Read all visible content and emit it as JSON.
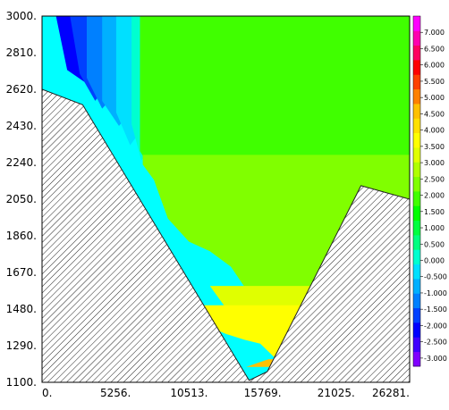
{
  "chart_data": {
    "type": "heatmap",
    "title": "",
    "xlabel": "",
    "ylabel": "",
    "xlim": [
      0,
      26281
    ],
    "ylim": [
      1100,
      3000
    ],
    "x_ticks": [
      "0.",
      "5256.",
      "10513.",
      "15769.",
      "21025.",
      "26281."
    ],
    "y_ticks": [
      "3000.",
      "2810.",
      "2620.",
      "2430.",
      "2240.",
      "2050.",
      "1860.",
      "1670.",
      "1480.",
      "1290.",
      "1100."
    ],
    "colorbar": {
      "range": [
        -3.25,
        7.5
      ],
      "labels": [
        "7.000",
        "6.500",
        "6.000",
        "5.500",
        "5.000",
        "4.500",
        "4.000",
        "3.500",
        "3.000",
        "2.500",
        "2.000",
        "1.500",
        "1.000",
        "0.500",
        "0.000",
        "-0.500",
        "-1.000",
        "-1.500",
        "-2.000",
        "-2.500",
        "-3.000"
      ],
      "label_values": [
        7.0,
        6.5,
        6.0,
        5.5,
        5.0,
        4.5,
        4.0,
        3.5,
        3.0,
        2.5,
        2.0,
        1.5,
        1.0,
        0.5,
        0.0,
        -0.5,
        -1.0,
        -1.5,
        -2.0,
        -2.5,
        -3.0
      ],
      "colors": [
        "#8000ff",
        "#4000ff",
        "#0000ff",
        "#0040ff",
        "#0080ff",
        "#00b0ff",
        "#00e0ff",
        "#00ffd0",
        "#00ff80",
        "#00ff40",
        "#00ff00",
        "#40ff00",
        "#80ff00",
        "#b0ff00",
        "#e0ff00",
        "#ffff00",
        "#ffe000",
        "#ffc000",
        "#ff8000",
        "#ff4000",
        "#ff0000",
        "#ff0060",
        "#ff00b0",
        "#ff00ff"
      ]
    },
    "terrain_boundary": [
      [
        0,
        2620
      ],
      [
        2900,
        2540
      ],
      [
        14800,
        1110
      ],
      [
        16100,
        1155
      ],
      [
        22800,
        2120
      ],
      [
        26281,
        2050
      ]
    ],
    "contour_levels": [
      {
        "value": -2.5,
        "color": "#0000ff",
        "points": [
          [
            1000,
            3000
          ],
          [
            1800,
            2720
          ],
          [
            3800,
            2620
          ],
          [
            6500,
            2790
          ],
          [
            9500,
            2870
          ],
          [
            12500,
            2900
          ],
          [
            16000,
            2940
          ],
          [
            19000,
            2910
          ],
          [
            21500,
            2850
          ],
          [
            23500,
            2750
          ],
          [
            25800,
            2640
          ],
          [
            26281,
            2600
          ],
          [
            26281,
            3000
          ]
        ]
      },
      {
        "value": -2.0,
        "color": "#0040ff",
        "points": [
          [
            2000,
            3000
          ],
          [
            2700,
            2700
          ],
          [
            3800,
            2560
          ],
          [
            6000,
            2760
          ],
          [
            9500,
            2820
          ],
          [
            13000,
            2830
          ],
          [
            16000,
            2880
          ],
          [
            19000,
            2860
          ],
          [
            22000,
            2780
          ],
          [
            24500,
            2640
          ],
          [
            25700,
            2440
          ],
          [
            26281,
            2300
          ],
          [
            26281,
            3000
          ]
        ]
      },
      {
        "value": -1.0,
        "color": "#0080ff",
        "points": [
          [
            3200,
            3000
          ],
          [
            3200,
            2680
          ],
          [
            4300,
            2520
          ],
          [
            6500,
            2690
          ],
          [
            9500,
            2740
          ],
          [
            12500,
            2760
          ],
          [
            15500,
            2810
          ],
          [
            18800,
            2780
          ],
          [
            21500,
            2700
          ],
          [
            24000,
            2560
          ],
          [
            25500,
            2300
          ],
          [
            25900,
            2150
          ],
          [
            26281,
            2100
          ],
          [
            26281,
            3000
          ]
        ]
      },
      {
        "value": -0.5,
        "color": "#00b0ff",
        "points": [
          [
            4300,
            3000
          ],
          [
            4300,
            2560
          ],
          [
            5500,
            2430
          ],
          [
            7500,
            2600
          ],
          [
            10000,
            2660
          ],
          [
            12500,
            2680
          ],
          [
            15500,
            2730
          ],
          [
            18500,
            2700
          ],
          [
            21000,
            2600
          ],
          [
            23300,
            2380
          ],
          [
            24200,
            2120
          ],
          [
            25000,
            2080
          ],
          [
            26281,
            2050
          ],
          [
            26281,
            3000
          ]
        ]
      },
      {
        "value": 0.0,
        "color": "#00e0ff",
        "points": [
          [
            5300,
            3000
          ],
          [
            5300,
            2500
          ],
          [
            6300,
            2330
          ],
          [
            7800,
            2480
          ],
          [
            10000,
            2560
          ],
          [
            12500,
            2600
          ],
          [
            15000,
            2640
          ],
          [
            18000,
            2600
          ],
          [
            20500,
            2480
          ],
          [
            22300,
            2200
          ],
          [
            22800,
            2050
          ],
          [
            22000,
            1900
          ],
          [
            26281,
            1900
          ],
          [
            26281,
            3000
          ]
        ]
      },
      {
        "value": 0.5,
        "color": "#00ffd0",
        "points": [
          [
            6400,
            3000
          ],
          [
            6400,
            2440
          ],
          [
            7100,
            2250
          ],
          [
            8200,
            2350
          ],
          [
            10200,
            2440
          ],
          [
            12300,
            2500
          ],
          [
            14500,
            2520
          ],
          [
            17500,
            2490
          ],
          [
            19500,
            2350
          ],
          [
            21000,
            2150
          ],
          [
            21800,
            1950
          ],
          [
            21000,
            1800
          ],
          [
            26281,
            1800
          ],
          [
            26281,
            3000
          ]
        ]
      },
      {
        "value": 1.0,
        "color": "#00ff80",
        "points": [
          [
            7400,
            3000
          ],
          [
            7400,
            2370
          ],
          [
            8200,
            2200
          ],
          [
            9500,
            2290
          ],
          [
            11500,
            2380
          ],
          [
            13500,
            2430
          ],
          [
            15500,
            2400
          ],
          [
            17500,
            2360
          ],
          [
            19200,
            2200
          ],
          [
            20200,
            2000
          ],
          [
            20300,
            1800
          ],
          [
            19400,
            1700
          ],
          [
            26281,
            1700
          ],
          [
            26281,
            3000
          ]
        ]
      },
      {
        "value": 1.5,
        "color": "#00ff40",
        "points": [
          [
            8500,
            3000
          ],
          [
            8500,
            2320
          ],
          [
            9300,
            2170
          ],
          [
            10500,
            2240
          ],
          [
            12300,
            2320
          ],
          [
            14000,
            2330
          ],
          [
            16000,
            2260
          ],
          [
            17600,
            2150
          ],
          [
            18600,
            1980
          ],
          [
            18900,
            1820
          ],
          [
            18600,
            1650
          ],
          [
            26281,
            1650
          ],
          [
            26281,
            3000
          ]
        ]
      },
      {
        "value": 2.0,
        "color": "#00ff00",
        "points": [
          [
            9000,
            3000
          ],
          [
            9000,
            2220
          ],
          [
            10200,
            2140
          ],
          [
            11800,
            2200
          ],
          [
            13500,
            2240
          ],
          [
            15200,
            2180
          ],
          [
            16500,
            2020
          ],
          [
            17400,
            1860
          ],
          [
            17600,
            1720
          ],
          [
            17000,
            1560
          ],
          [
            26281,
            1560
          ],
          [
            26281,
            3000
          ]
        ]
      },
      {
        "value": 2.5,
        "color": "#40ff00",
        "points": [
          [
            7000,
            3000
          ],
          [
            7000,
            2300
          ],
          [
            8000,
            2180
          ],
          [
            9500,
            2160
          ],
          [
            11000,
            2170
          ],
          [
            12500,
            2140
          ],
          [
            14000,
            2100
          ],
          [
            15200,
            1980
          ],
          [
            16000,
            1800
          ],
          [
            16600,
            1620
          ],
          [
            16200,
            1450
          ],
          [
            26281,
            1450
          ],
          [
            26281,
            3000
          ]
        ]
      },
      {
        "value": 3.0,
        "color": "#80ff00",
        "points": [
          [
            7200,
            2280
          ],
          [
            7200,
            2230
          ],
          [
            8000,
            2150
          ],
          [
            9000,
            1950
          ],
          [
            10500,
            1830
          ],
          [
            12000,
            1780
          ],
          [
            13500,
            1700
          ],
          [
            14800,
            1560
          ],
          [
            15600,
            1420
          ],
          [
            16500,
            1300
          ],
          [
            26281,
            1300
          ],
          [
            26281,
            2280
          ]
        ]
      },
      {
        "value": 3.5,
        "color": "#e0ff00",
        "points": [
          [
            12000,
            1600
          ],
          [
            13000,
            1500
          ],
          [
            13800,
            1450
          ],
          [
            14800,
            1420
          ],
          [
            15800,
            1390
          ],
          [
            16600,
            1330
          ],
          [
            26281,
            1330
          ],
          [
            26281,
            1600
          ]
        ]
      },
      {
        "value": 4.0,
        "color": "#ffff00",
        "points": [
          [
            11000,
            1500
          ],
          [
            11300,
            1420
          ],
          [
            12200,
            1380
          ],
          [
            13200,
            1350
          ],
          [
            14500,
            1320
          ],
          [
            15600,
            1300
          ],
          [
            16600,
            1230
          ],
          [
            26281,
            1230
          ],
          [
            26281,
            1500
          ]
        ]
      },
      {
        "value": 4.5,
        "color": "#ffc000",
        "points": [
          [
            14600,
            1180
          ],
          [
            15400,
            1200
          ],
          [
            16200,
            1220
          ],
          [
            26281,
            1220
          ],
          [
            26281,
            1180
          ]
        ]
      }
    ]
  }
}
